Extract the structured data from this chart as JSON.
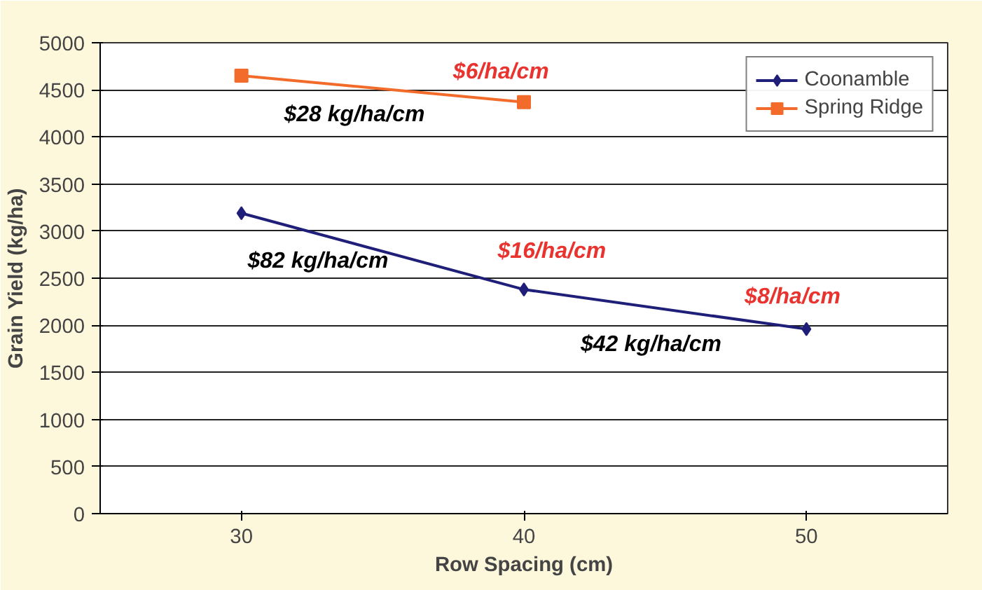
{
  "chart_data": {
    "type": "line",
    "xlabel": "Row Spacing (cm)",
    "ylabel": "Grain Yield (kg/ha)",
    "x": [
      30,
      40,
      50
    ],
    "xlim": [
      25,
      55
    ],
    "xticks": [
      30,
      40,
      50
    ],
    "ylim": [
      0,
      5000
    ],
    "yticks": [
      0,
      500,
      1000,
      1500,
      2000,
      2500,
      3000,
      3500,
      4000,
      4500,
      5000
    ],
    "series": [
      {
        "name": "Coonamble",
        "color": "#1f1f7a",
        "values": [
          3190,
          2380,
          1960
        ],
        "marker": "diamond"
      },
      {
        "name": "Spring Ridge",
        "color": "#f26b2a",
        "x": [
          30,
          40
        ],
        "values": [
          4650,
          4370
        ],
        "marker": "square"
      }
    ],
    "annotations": [
      "$6/ha/cm",
      "$28 kg/ha/cm",
      "$16/ha/cm",
      "$82 kg/ha/cm",
      "$8/ha/cm",
      "$42 kg/ha/cm"
    ],
    "grid": "y",
    "legend": "top right"
  }
}
